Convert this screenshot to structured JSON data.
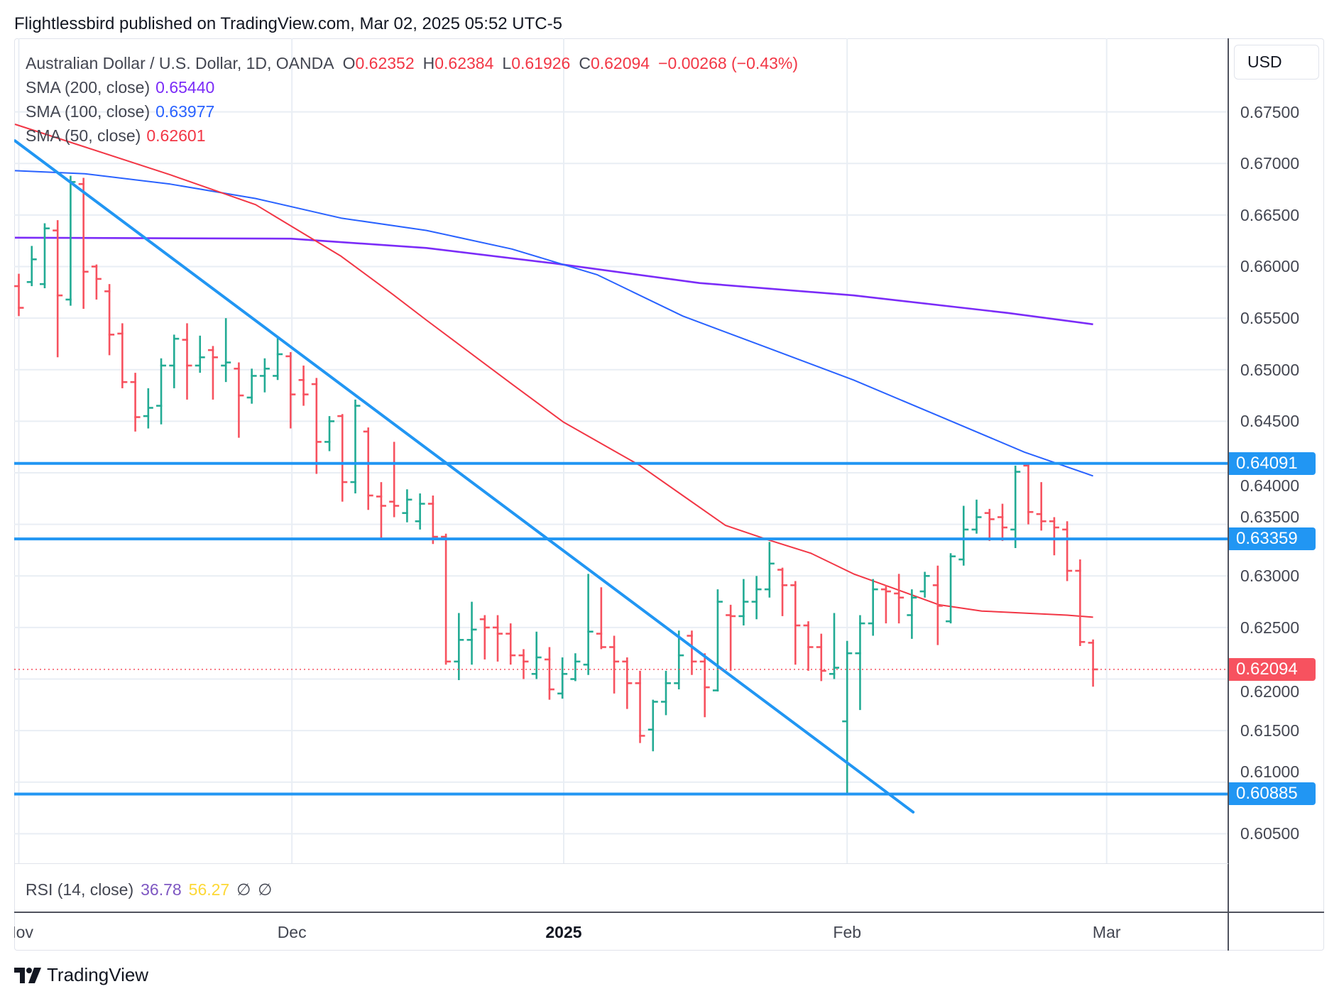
{
  "publisher_line": "Flightlessbird published on TradingView.com, Mar 02, 2025 05:52 UTC-5",
  "legend": {
    "symbol": "Australian Dollar / U.S. Dollar, 1D, OANDA",
    "o_label": "O",
    "o": "0.62352",
    "h_label": "H",
    "h": "0.62384",
    "l_label": "L",
    "l": "0.61926",
    "c_label": "C",
    "c": "0.62094",
    "change": "−0.00268 (−0.43%)",
    "sma200_label": "SMA (200, close)",
    "sma200": "0.65440",
    "sma100_label": "SMA (100, close)",
    "sma100": "0.63977",
    "sma50_label": "SMA (50, close)",
    "sma50": "0.62601"
  },
  "currency_button": "USD",
  "rsi": {
    "label": "RSI (14, close)",
    "value": "36.78",
    "ma": "56.27",
    "na1": "∅",
    "na2": "∅"
  },
  "footer_logo": "TradingView",
  "colors": {
    "up": "#22ab94",
    "down": "#f7525f",
    "sma200": "#7b2cf8",
    "sma100": "#2962ff",
    "sma50": "#f23645",
    "drawing": "#2196f3",
    "last": "#f7525f",
    "grid": "#e9eef4"
  },
  "chart_data": {
    "type": "ohlc",
    "title": "Australian Dollar / U.S. Dollar, 1D, OANDA",
    "ylabel": "USD",
    "ylim": [
      0.6021,
      0.6821
    ],
    "grid": true,
    "y_ticks": [
      "0.60500",
      "0.61000",
      "0.61500",
      "0.62000",
      "0.62500",
      "0.63000",
      "0.63500",
      "0.64000",
      "0.64500",
      "0.65000",
      "0.65500",
      "0.66000",
      "0.66500",
      "0.67000",
      "0.67500"
    ],
    "x_ticks": [
      {
        "label": "Nov",
        "index": 0,
        "bold": false
      },
      {
        "label": "Dec",
        "index": 21.1,
        "bold": false
      },
      {
        "label": "2025",
        "index": 42.1,
        "bold": true
      },
      {
        "label": "Feb",
        "index": 64,
        "bold": false
      },
      {
        "label": "Mar",
        "index": 84.05,
        "bold": false
      }
    ],
    "bars_ohlc": [
      [
        0.6581,
        0.6593,
        0.6552,
        0.656
      ],
      [
        0.6585,
        0.662,
        0.6581,
        0.6607
      ],
      [
        0.6583,
        0.6642,
        0.6579,
        0.6637
      ],
      [
        0.6635,
        0.6645,
        0.6512,
        0.6572
      ],
      [
        0.6568,
        0.6688,
        0.6562,
        0.6682
      ],
      [
        0.668,
        0.6686,
        0.6559,
        0.6595
      ],
      [
        0.66,
        0.6602,
        0.6568,
        0.6588
      ],
      [
        0.6576,
        0.6583,
        0.6514,
        0.6534
      ],
      [
        0.6535,
        0.6545,
        0.6482,
        0.6488
      ],
      [
        0.6488,
        0.6497,
        0.644,
        0.6454
      ],
      [
        0.6455,
        0.6482,
        0.6443,
        0.6463
      ],
      [
        0.6465,
        0.6511,
        0.6447,
        0.6504
      ],
      [
        0.6504,
        0.6534,
        0.6482,
        0.653
      ],
      [
        0.6529,
        0.6545,
        0.6471,
        0.6504
      ],
      [
        0.6504,
        0.6533,
        0.6497,
        0.6512
      ],
      [
        0.6519,
        0.6523,
        0.6471,
        0.6512
      ],
      [
        0.6504,
        0.655,
        0.6488,
        0.6507
      ],
      [
        0.6501,
        0.6507,
        0.6434,
        0.6475
      ],
      [
        0.6473,
        0.6501,
        0.6467,
        0.6494
      ],
      [
        0.6494,
        0.6511,
        0.6478,
        0.6501
      ],
      [
        0.6494,
        0.6531,
        0.649,
        0.6515
      ],
      [
        0.6513,
        0.6517,
        0.6443,
        0.6476
      ],
      [
        0.649,
        0.6504,
        0.6465,
        0.6476
      ],
      [
        0.6486,
        0.6492,
        0.6399,
        0.643
      ],
      [
        0.643,
        0.6455,
        0.6421,
        0.645
      ],
      [
        0.6455,
        0.6457,
        0.6372,
        0.6391
      ],
      [
        0.6391,
        0.6471,
        0.638,
        0.6465
      ],
      [
        0.644,
        0.6444,
        0.6364,
        0.6378
      ],
      [
        0.6377,
        0.6391,
        0.6337,
        0.6368
      ],
      [
        0.6372,
        0.643,
        0.6357,
        0.6368
      ],
      [
        0.6361,
        0.6384,
        0.6352,
        0.6374
      ],
      [
        0.6353,
        0.638,
        0.6345,
        0.637
      ],
      [
        0.637,
        0.6378,
        0.6331,
        0.6338
      ],
      [
        0.6338,
        0.6341,
        0.6214,
        0.6217
      ],
      [
        0.6217,
        0.6264,
        0.6199,
        0.6238
      ],
      [
        0.6238,
        0.6275,
        0.6214,
        0.6248
      ],
      [
        0.6258,
        0.6262,
        0.6219,
        0.625
      ],
      [
        0.625,
        0.6262,
        0.6217,
        0.6244
      ],
      [
        0.6244,
        0.6254,
        0.6214,
        0.6223
      ],
      [
        0.6223,
        0.6229,
        0.62,
        0.6217
      ],
      [
        0.6205,
        0.6246,
        0.62,
        0.6221
      ],
      [
        0.6219,
        0.6231,
        0.618,
        0.619
      ],
      [
        0.6186,
        0.6221,
        0.6181,
        0.6205
      ],
      [
        0.62,
        0.6225,
        0.6198,
        0.6217
      ],
      [
        0.6214,
        0.6302,
        0.6204,
        0.6246
      ],
      [
        0.6244,
        0.6289,
        0.6229,
        0.6231
      ],
      [
        0.6231,
        0.6242,
        0.6186,
        0.6217
      ],
      [
        0.6217,
        0.6221,
        0.6171,
        0.6196
      ],
      [
        0.6196,
        0.6208,
        0.6138,
        0.6145
      ],
      [
        0.6151,
        0.618,
        0.613,
        0.6178
      ],
      [
        0.6178,
        0.6208,
        0.6165,
        0.6196
      ],
      [
        0.6196,
        0.6247,
        0.619,
        0.6223
      ],
      [
        0.6242,
        0.6247,
        0.6204,
        0.6217
      ],
      [
        0.6217,
        0.6225,
        0.6163,
        0.6192
      ],
      [
        0.6189,
        0.6287,
        0.6188,
        0.6275
      ],
      [
        0.6262,
        0.6272,
        0.6208,
        0.6261
      ],
      [
        0.6261,
        0.6297,
        0.6252,
        0.6275
      ],
      [
        0.6275,
        0.63,
        0.6258,
        0.6287
      ],
      [
        0.6287,
        0.6333,
        0.6279,
        0.6312
      ],
      [
        0.6306,
        0.6308,
        0.6261,
        0.6291
      ],
      [
        0.6291,
        0.6295,
        0.6214,
        0.6252
      ],
      [
        0.6252,
        0.6256,
        0.6208,
        0.6231
      ],
      [
        0.6231,
        0.6244,
        0.6198,
        0.6208
      ],
      [
        0.6205,
        0.6264,
        0.62,
        0.6211
      ],
      [
        0.6159,
        0.6237,
        0.6088,
        0.6225
      ],
      [
        0.6225,
        0.6262,
        0.617,
        0.6254
      ],
      [
        0.6254,
        0.6297,
        0.6242,
        0.6287
      ],
      [
        0.6287,
        0.6291,
        0.6254,
        0.6285
      ],
      [
        0.6283,
        0.6302,
        0.6254,
        0.6279
      ],
      [
        0.6262,
        0.6287,
        0.6239,
        0.6279
      ],
      [
        0.6285,
        0.6304,
        0.6279,
        0.63
      ],
      [
        0.6291,
        0.631,
        0.6233,
        0.6271
      ],
      [
        0.6256,
        0.6322,
        0.6254,
        0.6319
      ],
      [
        0.6316,
        0.6368,
        0.631,
        0.6345
      ],
      [
        0.6345,
        0.6374,
        0.6341,
        0.6357
      ],
      [
        0.6361,
        0.6365,
        0.6334,
        0.6355
      ],
      [
        0.6357,
        0.637,
        0.6334,
        0.6347
      ],
      [
        0.6345,
        0.6407,
        0.6327,
        0.6401
      ],
      [
        0.6407,
        0.641,
        0.635,
        0.6362
      ],
      [
        0.636,
        0.6391,
        0.6344,
        0.6353
      ],
      [
        0.6353,
        0.6357,
        0.632,
        0.6347
      ],
      [
        0.6345,
        0.6353,
        0.6295,
        0.6305
      ],
      [
        0.6305,
        0.6316,
        0.6232,
        0.6236
      ],
      [
        0.62352,
        0.62384,
        0.61926,
        0.62094
      ]
    ],
    "series": [
      {
        "name": "SMA (200, close)",
        "points": [
          [
            -0.3,
            0.6628
          ],
          [
            21,
            0.6627
          ],
          [
            31.5,
            0.6618
          ],
          [
            41.4,
            0.6603
          ],
          [
            52.6,
            0.6584
          ],
          [
            64.5,
            0.6572
          ],
          [
            76.4,
            0.6555
          ],
          [
            83,
            0.6544
          ]
        ]
      },
      {
        "name": "SMA (100, close)",
        "points": [
          [
            -0.3,
            0.6693
          ],
          [
            5.1,
            0.669
          ],
          [
            11.7,
            0.668
          ],
          [
            18.3,
            0.6666
          ],
          [
            24.9,
            0.6647
          ],
          [
            31.5,
            0.6635
          ],
          [
            38.1,
            0.6617
          ],
          [
            44.7,
            0.6592
          ],
          [
            51.3,
            0.6552
          ],
          [
            57.9,
            0.6521
          ],
          [
            64.5,
            0.649
          ],
          [
            71.1,
            0.6455
          ],
          [
            77.7,
            0.642
          ],
          [
            83,
            0.6397
          ]
        ]
      },
      {
        "name": "SMA (50, close)",
        "points": [
          [
            -0.3,
            0.6738
          ],
          [
            5.1,
            0.6716
          ],
          [
            11.7,
            0.6689
          ],
          [
            18.3,
            0.666
          ],
          [
            24.9,
            0.661
          ],
          [
            28.9,
            0.6573
          ],
          [
            31.5,
            0.6548
          ],
          [
            38.1,
            0.6486
          ],
          [
            42.1,
            0.6449
          ],
          [
            48,
            0.6407
          ],
          [
            51.3,
            0.6378
          ],
          [
            54.6,
            0.6349
          ],
          [
            57.9,
            0.6335
          ],
          [
            61.2,
            0.6322
          ],
          [
            64.5,
            0.6302
          ],
          [
            67.8,
            0.6287
          ],
          [
            71.1,
            0.6272
          ],
          [
            74.4,
            0.6266
          ],
          [
            77.7,
            0.6264
          ],
          [
            81,
            0.6262
          ],
          [
            83,
            0.626
          ]
        ]
      }
    ],
    "trendline": [
      [
        -0.3,
        0.6722
      ],
      [
        69.1,
        0.6071
      ]
    ],
    "horizontal_levels": [
      {
        "value": 0.64091,
        "label": "0.64091"
      },
      {
        "value": 0.63359,
        "label": "0.63359"
      },
      {
        "value": 0.60885,
        "label": "0.60885"
      }
    ],
    "last_price": {
      "value": 0.62094,
      "label": "0.62094"
    }
  }
}
